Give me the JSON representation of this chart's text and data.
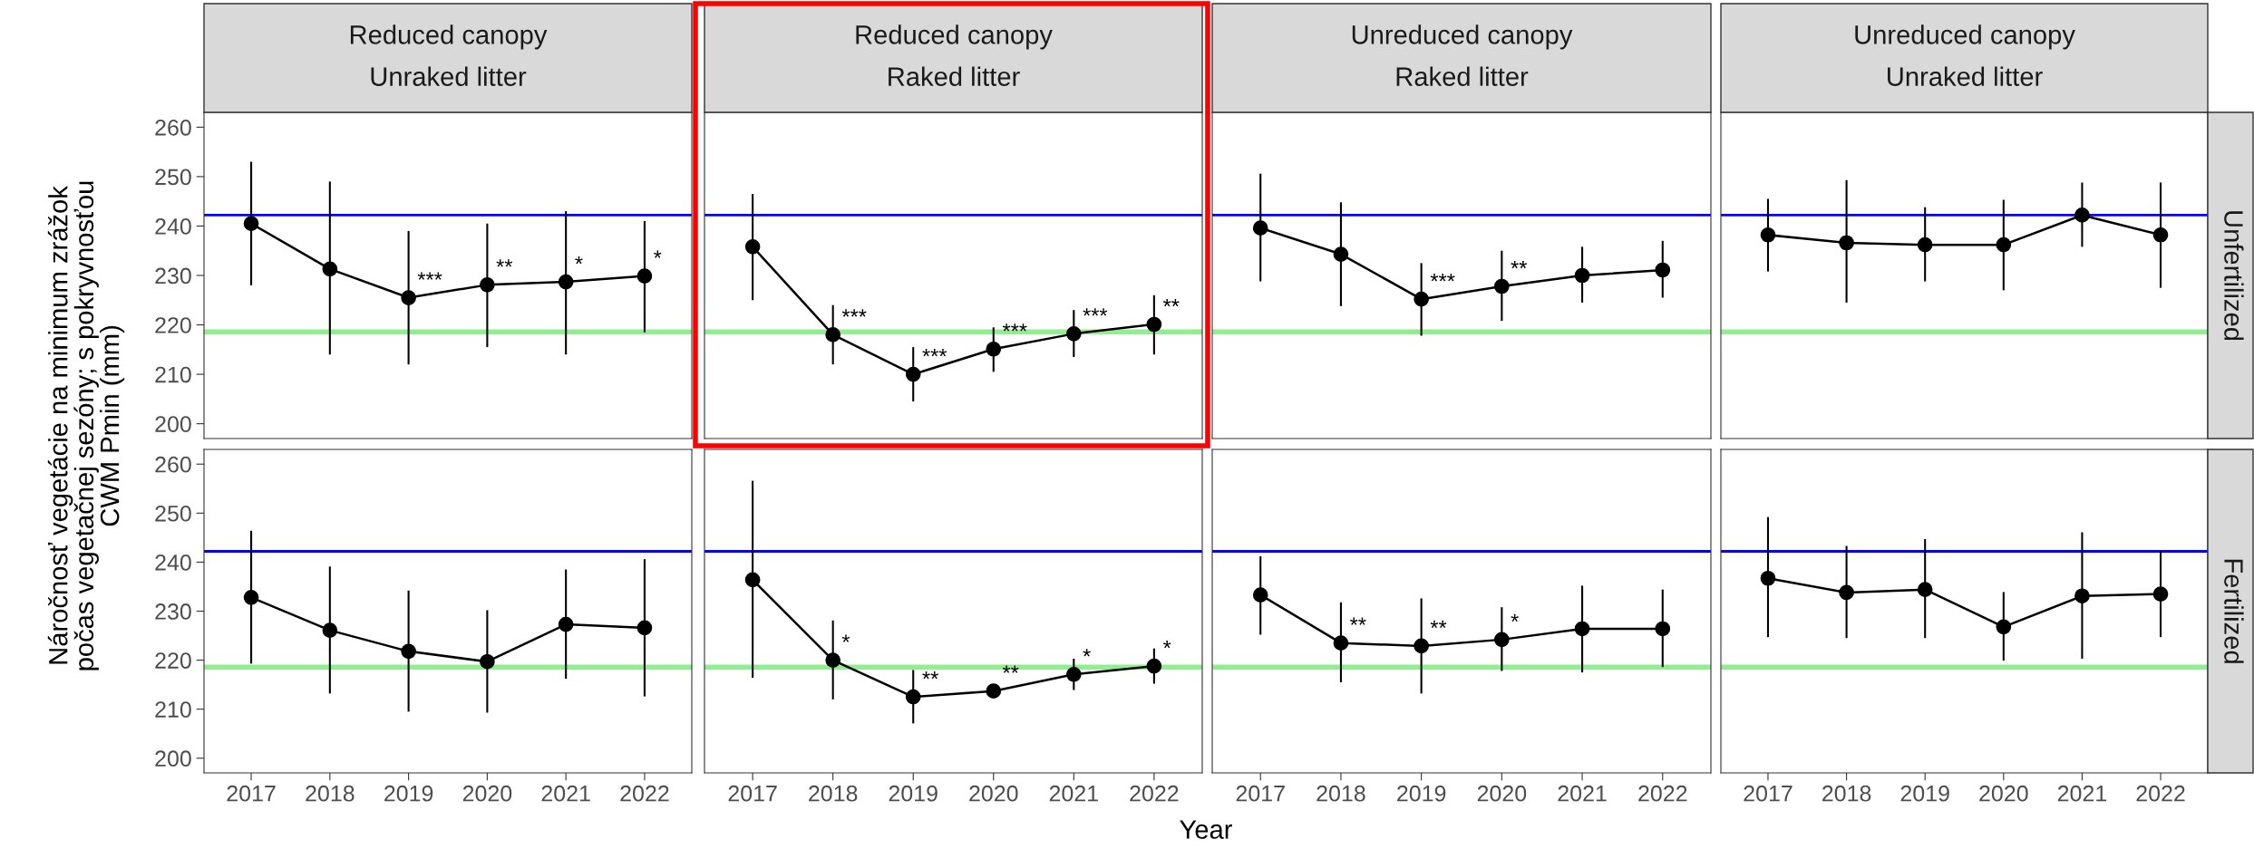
{
  "chart_data": [
    {
      "type": "line",
      "title": "Reduced canopy\nUnraked litter",
      "x": [
        2017,
        2018,
        2019,
        2020,
        2021,
        2022
      ],
      "xlim": [
        2016.4,
        2022.6
      ],
      "xticks": [
        2017,
        2018,
        2019,
        2020,
        2021,
        2022
      ],
      "ylim": [
        197,
        263
      ],
      "yticks": [
        200,
        210,
        220,
        230,
        240,
        250,
        260
      ],
      "tick_labels": "y",
      "grid": false,
      "legend": false,
      "marker": "circle",
      "line_style": "solid",
      "ylabel": "Náročnosť vegetácie na minimum zrážok\npočas vegetačnej sezóny; s pokryvnosťou\nCWM Pmin (mm)",
      "series": [
        {
          "color": "#000000",
          "values": [
            240.5,
            231.3,
            225.5,
            228.1,
            228.7,
            229.9
          ],
          "errors": [
            [
              228,
              253
            ],
            [
              214,
              249
            ],
            [
              212,
              239
            ],
            [
              215.5,
              240.5
            ],
            [
              214,
              243
            ],
            [
              218.5,
              241
            ]
          ],
          "value_labels": [
            null,
            null,
            "***",
            "**",
            "*",
            "*"
          ]
        }
      ],
      "ref_lines": [
        {
          "axis": "y",
          "value": 242.2,
          "color": "#0000ff"
        },
        {
          "axis": "y",
          "value": 218.6,
          "color": "#90ee90"
        }
      ]
    },
    {
      "type": "line",
      "title": "Reduced canopy\nRaked litter",
      "x": [
        2017,
        2018,
        2019,
        2020,
        2021,
        2022
      ],
      "xlim": [
        2016.4,
        2022.6
      ],
      "xticks": [
        2017,
        2018,
        2019,
        2020,
        2021,
        2022
      ],
      "ylim": [
        197,
        263
      ],
      "yticks": [
        200,
        210,
        220,
        230,
        240,
        250,
        260
      ],
      "tick_labels": false,
      "grid": false,
      "legend": false,
      "marker": "circle",
      "line_style": "solid",
      "series": [
        {
          "color": "#000000",
          "values": [
            235.8,
            218,
            210,
            215.1,
            218.2,
            220.1
          ],
          "errors": [
            [
              225,
              246.5
            ],
            [
              212,
              224
            ],
            [
              204.5,
              215.5
            ],
            [
              210.5,
              219.5
            ],
            [
              213.5,
              223
            ],
            [
              214,
              226
            ]
          ],
          "value_labels": [
            null,
            "***",
            "***",
            "***",
            "***",
            "**"
          ]
        }
      ],
      "ref_lines": [
        {
          "axis": "y",
          "value": 242.2,
          "color": "#0000ff"
        },
        {
          "axis": "y",
          "value": 218.6,
          "color": "#90ee90"
        }
      ]
    },
    {
      "type": "line",
      "title": "Unreduced canopy\nRaked litter",
      "x": [
        2017,
        2018,
        2019,
        2020,
        2021,
        2022
      ],
      "xlim": [
        2016.4,
        2022.6
      ],
      "xticks": [
        2017,
        2018,
        2019,
        2020,
        2021,
        2022
      ],
      "ylim": [
        197,
        263
      ],
      "yticks": [
        200,
        210,
        220,
        230,
        240,
        250,
        260
      ],
      "tick_labels": false,
      "grid": false,
      "legend": false,
      "marker": "circle",
      "line_style": "solid",
      "series": [
        {
          "color": "#000000",
          "values": [
            239.6,
            234.3,
            225.2,
            227.8,
            230,
            231.1
          ],
          "errors": [
            [
              228.8,
              250.6
            ],
            [
              223.8,
              244.8
            ],
            [
              217.8,
              232.5
            ],
            [
              220.8,
              235
            ],
            [
              224.5,
              235.8
            ],
            [
              225.5,
              237
            ]
          ],
          "value_labels": [
            null,
            null,
            "***",
            "**",
            null,
            null
          ]
        }
      ],
      "ref_lines": [
        {
          "axis": "y",
          "value": 242.2,
          "color": "#0000ff"
        },
        {
          "axis": "y",
          "value": 218.6,
          "color": "#90ee90"
        }
      ]
    },
    {
      "type": "line",
      "title": "Unreduced canopy\nUnraked litter",
      "y2label": "Unfertilized",
      "x": [
        2017,
        2018,
        2019,
        2020,
        2021,
        2022
      ],
      "xlim": [
        2016.4,
        2022.6
      ],
      "xticks": [
        2017,
        2018,
        2019,
        2020,
        2021,
        2022
      ],
      "ylim": [
        197,
        263
      ],
      "yticks": [
        200,
        210,
        220,
        230,
        240,
        250,
        260
      ],
      "tick_labels": false,
      "grid": false,
      "legend": false,
      "marker": "circle",
      "line_style": "solid",
      "series": [
        {
          "color": "#000000",
          "values": [
            238.2,
            236.6,
            236.2,
            236.2,
            242.2,
            238.2
          ],
          "errors": [
            [
              230.8,
              245.5
            ],
            [
              224.5,
              249.3
            ],
            [
              228.8,
              243.8
            ],
            [
              227,
              245.3
            ],
            [
              235.8,
              248.8
            ],
            [
              227.5,
              248.8
            ]
          ]
        }
      ],
      "ref_lines": [
        {
          "axis": "y",
          "value": 242.2,
          "color": "#0000ff"
        },
        {
          "axis": "y",
          "value": 218.6,
          "color": "#90ee90"
        }
      ]
    },
    {
      "type": "line",
      "x": [
        2017,
        2018,
        2019,
        2020,
        2021,
        2022
      ],
      "xlim": [
        2016.4,
        2022.6
      ],
      "xticks": [
        2017,
        2018,
        2019,
        2020,
        2021,
        2022
      ],
      "ylim": [
        197,
        263
      ],
      "yticks": [
        200,
        210,
        220,
        230,
        240,
        250,
        260
      ],
      "grid": false,
      "legend": false,
      "marker": "circle",
      "line_style": "solid",
      "series": [
        {
          "color": "#000000",
          "values": [
            232.8,
            226.1,
            221.8,
            219.7,
            227.3,
            226.6
          ],
          "errors": [
            [
              219.3,
              246.4
            ],
            [
              213.2,
              239.1
            ],
            [
              209.5,
              234.2
            ],
            [
              209.3,
              230.2
            ],
            [
              216.2,
              238.5
            ],
            [
              212.6,
              240.6
            ]
          ]
        }
      ],
      "ref_lines": [
        {
          "axis": "y",
          "value": 242.2,
          "color": "#0000ff"
        },
        {
          "axis": "y",
          "value": 218.6,
          "color": "#90ee90"
        }
      ]
    },
    {
      "type": "line",
      "xlabel": "Year",
      "x": [
        2017,
        2018,
        2019,
        2020,
        2021,
        2022
      ],
      "xlim": [
        2016.4,
        2022.6
      ],
      "xticks": [
        2017,
        2018,
        2019,
        2020,
        2021,
        2022
      ],
      "ylim": [
        197,
        263
      ],
      "yticks": [
        200,
        210,
        220,
        230,
        240,
        250,
        260
      ],
      "tick_labels": "x",
      "grid": false,
      "legend": false,
      "marker": "circle",
      "line_style": "solid",
      "series": [
        {
          "color": "#000000",
          "values": [
            236.4,
            220,
            212.5,
            213.7,
            217.1,
            218.8
          ],
          "errors": [
            [
              216.4,
              256.6
            ],
            [
              212,
              228.1
            ],
            [
              207.1,
              218
            ],
            null,
            [
              213.9,
              220.3
            ],
            [
              215.2,
              222.4
            ]
          ],
          "value_labels": [
            null,
            "*",
            "**",
            "**",
            "*",
            "*"
          ]
        }
      ],
      "ref_lines": [
        {
          "axis": "y",
          "value": 242.2,
          "color": "#0000ff"
        },
        {
          "axis": "y",
          "value": 218.6,
          "color": "#90ee90"
        }
      ]
    },
    {
      "type": "line",
      "x": [
        2017,
        2018,
        2019,
        2020,
        2021,
        2022
      ],
      "xlim": [
        2016.4,
        2022.6
      ],
      "xticks": [
        2017,
        2018,
        2019,
        2020,
        2021,
        2022
      ],
      "ylim": [
        197,
        263
      ],
      "yticks": [
        200,
        210,
        220,
        230,
        240,
        250,
        260
      ],
      "tick_labels": "x",
      "grid": false,
      "legend": false,
      "marker": "circle",
      "line_style": "solid",
      "series": [
        {
          "color": "#000000",
          "values": [
            233.3,
            223.5,
            222.9,
            224.2,
            226.4,
            226.4
          ],
          "errors": [
            [
              225.2,
              241.2
            ],
            [
              215.5,
              231.8
            ],
            [
              213.2,
              232.6
            ],
            [
              217.8,
              230.8
            ],
            [
              217.5,
              235.2
            ],
            [
              218.6,
              234.4
            ]
          ],
          "value_labels": [
            null,
            "**",
            "**",
            "*",
            null,
            null
          ]
        }
      ],
      "ref_lines": [
        {
          "axis": "y",
          "value": 242.2,
          "color": "#0000ff"
        },
        {
          "axis": "y",
          "value": 218.6,
          "color": "#90ee90"
        }
      ]
    },
    {
      "type": "line",
      "y2label": "Fertilized",
      "x": [
        2017,
        2018,
        2019,
        2020,
        2021,
        2022
      ],
      "xlim": [
        2016.4,
        2022.6
      ],
      "xticks": [
        2017,
        2018,
        2019,
        2020,
        2021,
        2022
      ],
      "ylim": [
        197,
        263
      ],
      "yticks": [
        200,
        210,
        220,
        230,
        240,
        250,
        260
      ],
      "tick_labels": "x",
      "grid": false,
      "legend": false,
      "marker": "circle",
      "line_style": "solid",
      "series": [
        {
          "color": "#000000",
          "values": [
            236.7,
            233.8,
            234.4,
            226.8,
            233.1,
            233.5
          ],
          "errors": [
            [
              224.7,
              249.2
            ],
            [
              224.5,
              243.3
            ],
            [
              224.5,
              244.7
            ],
            [
              219.9,
              233.9
            ],
            [
              220.3,
              246.1
            ],
            [
              224.7,
              242.3
            ]
          ]
        }
      ],
      "ref_lines": [
        {
          "axis": "y",
          "value": 242.2,
          "color": "#0000ff"
        },
        {
          "axis": "y",
          "value": 218.6,
          "color": "#90ee90"
        }
      ]
    }
  ]
}
